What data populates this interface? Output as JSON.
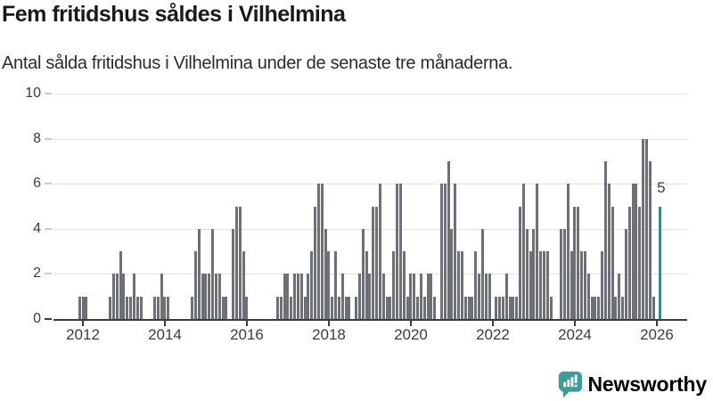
{
  "header": {
    "title": "Fem fritidshus såldes i Vilhelmina",
    "subtitle": "Antal sålda fritidshus i Vilhelmina under de senaste tre månaderna."
  },
  "branding": {
    "logo_text": "Newsworthy",
    "logo_color": "#3d9d96"
  },
  "chart_data": {
    "type": "bar",
    "title": "Fem fritidshus såldes i Vilhelmina",
    "subtitle": "Antal sålda fritidshus i Vilhelmina under de senaste tre månaderna.",
    "xlabel": "",
    "ylabel": "",
    "ylim": [
      0,
      10
    ],
    "yticks": [
      0,
      2,
      4,
      6,
      8,
      10
    ],
    "xticks": [
      2012,
      2014,
      2016,
      2018,
      2020,
      2022,
      2024,
      2026
    ],
    "grid": true,
    "legend_position": "none",
    "bar_color": "#6d7076",
    "axis_color": "#3a3d41",
    "start_month": "2011-12",
    "frequency": "monthly",
    "values": [
      1,
      1,
      1,
      0,
      0,
      0,
      0,
      0,
      0,
      1,
      2,
      2,
      3,
      2,
      1,
      1,
      2,
      1,
      1,
      0,
      0,
      0,
      1,
      1,
      2,
      1,
      1,
      0,
      0,
      0,
      0,
      0,
      0,
      1,
      3,
      4,
      2,
      2,
      2,
      4,
      2,
      2,
      1,
      1,
      0,
      4,
      5,
      5,
      3,
      1,
      0,
      0,
      0,
      0,
      0,
      0,
      0,
      0,
      1,
      1,
      2,
      2,
      1,
      2,
      2,
      2,
      1,
      2,
      3,
      5,
      6,
      6,
      4,
      3,
      1,
      3,
      1,
      2,
      1,
      1,
      0,
      1,
      2,
      4,
      3,
      2,
      5,
      5,
      6,
      2,
      1,
      1,
      3,
      6,
      6,
      3,
      1,
      2,
      2,
      1,
      2,
      1,
      2,
      2,
      1,
      0,
      6,
      6,
      7,
      4,
      6,
      3,
      3,
      1,
      1,
      1,
      3,
      2,
      4,
      2,
      2,
      0,
      1,
      1,
      1,
      2,
      1,
      1,
      1,
      5,
      6,
      4,
      3,
      4,
      6,
      3,
      3,
      3,
      1,
      0,
      0,
      4,
      4,
      6,
      3,
      5,
      5,
      3,
      3,
      2,
      1,
      1,
      1,
      3,
      7,
      6,
      5,
      1,
      2,
      1,
      4,
      5,
      6,
      6,
      5,
      8,
      8,
      7,
      1,
      0,
      5
    ],
    "highlight": {
      "month": "2026-02",
      "value": 5,
      "label": "5",
      "color": "#00a2a4"
    }
  }
}
